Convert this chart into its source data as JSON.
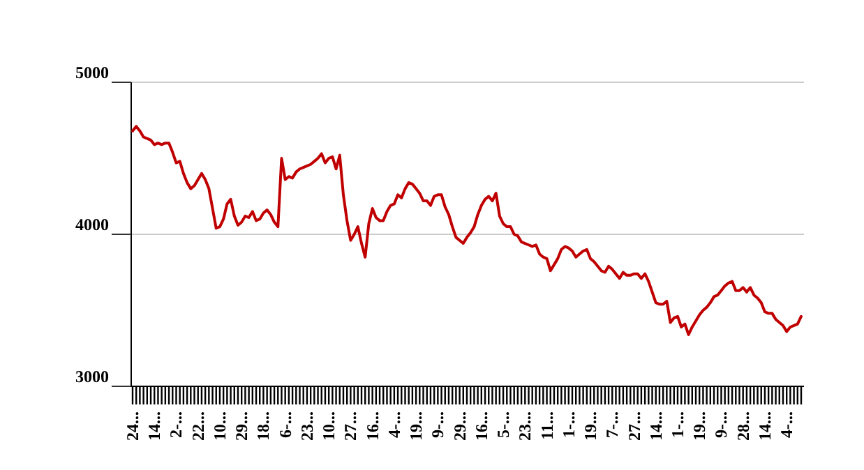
{
  "chart_data": {
    "type": "line",
    "categories": [
      "24...",
      null,
      null,
      null,
      null,
      null,
      "14...",
      null,
      null,
      null,
      null,
      null,
      "2-...",
      null,
      null,
      null,
      null,
      null,
      "22...",
      null,
      null,
      null,
      null,
      null,
      "10...",
      null,
      null,
      null,
      null,
      null,
      "29...",
      null,
      null,
      null,
      null,
      null,
      "18...",
      null,
      null,
      null,
      null,
      null,
      "6-...",
      null,
      null,
      null,
      null,
      null,
      "23...",
      null,
      null,
      null,
      null,
      null,
      "10...",
      null,
      null,
      null,
      null,
      null,
      "27...",
      null,
      null,
      null,
      null,
      null,
      "16...",
      null,
      null,
      null,
      null,
      null,
      "4-...",
      null,
      null,
      null,
      null,
      null,
      "19...",
      null,
      null,
      null,
      null,
      null,
      "9-...",
      null,
      null,
      null,
      null,
      null,
      "29...",
      null,
      null,
      null,
      null,
      null,
      "16...",
      null,
      null,
      null,
      null,
      null,
      "5-...",
      null,
      null,
      null,
      null,
      null,
      "23...",
      null,
      null,
      null,
      null,
      null,
      "11...",
      null,
      null,
      null,
      null,
      null,
      "1-...",
      null,
      null,
      null,
      null,
      null,
      "19...",
      null,
      null,
      null,
      null,
      null,
      "7-...",
      null,
      null,
      null,
      null,
      null,
      "27...",
      null,
      null,
      null,
      null,
      null,
      "14...",
      null,
      null,
      null,
      null,
      null,
      "1-...",
      null,
      null,
      null,
      null,
      null,
      "19...",
      null,
      null,
      null,
      null,
      null,
      "9-...",
      null,
      null,
      null,
      null,
      null,
      "28...",
      null,
      null,
      null,
      null,
      null,
      "14...",
      null,
      null,
      null,
      null,
      null,
      "4-...",
      null,
      null,
      null,
      null
    ],
    "series": [
      {
        "color": "#c00000",
        "values": [
          4680,
          4710,
          4680,
          4640,
          4630,
          4620,
          4590,
          4600,
          4590,
          4600,
          4600,
          4540,
          4470,
          4480,
          4400,
          4340,
          4300,
          4320,
          4360,
          4400,
          4360,
          4300,
          4170,
          4040,
          4050,
          4100,
          4200,
          4230,
          4120,
          4060,
          4080,
          4120,
          4110,
          4150,
          4090,
          4100,
          4140,
          4160,
          4130,
          4080,
          4050,
          4500,
          4360,
          4380,
          4370,
          4410,
          4430,
          4440,
          4450,
          4460,
          4480,
          4500,
          4530,
          4470,
          4500,
          4510,
          4430,
          4520,
          4260,
          4090,
          3960,
          4000,
          4050,
          3940,
          3850,
          4070,
          4170,
          4110,
          4090,
          4090,
          4150,
          4190,
          4200,
          4260,
          4240,
          4300,
          4340,
          4330,
          4300,
          4270,
          4220,
          4220,
          4190,
          4250,
          4260,
          4260,
          4180,
          4130,
          4050,
          3980,
          3960,
          3940,
          3980,
          4010,
          4050,
          4130,
          4190,
          4230,
          4250,
          4220,
          4270,
          4120,
          4070,
          4050,
          4050,
          4000,
          3990,
          3950,
          3940,
          3930,
          3920,
          3930,
          3870,
          3850,
          3840,
          3760,
          3800,
          3840,
          3900,
          3920,
          3910,
          3890,
          3850,
          3870,
          3890,
          3900,
          3840,
          3820,
          3790,
          3760,
          3750,
          3790,
          3770,
          3740,
          3710,
          3750,
          3730,
          3730,
          3740,
          3740,
          3710,
          3740,
          3690,
          3620,
          3550,
          3540,
          3540,
          3560,
          3420,
          3450,
          3460,
          3390,
          3410,
          3340,
          3390,
          3430,
          3470,
          3500,
          3520,
          3550,
          3590,
          3600,
          3630,
          3660,
          3680,
          3690,
          3630,
          3630,
          3650,
          3620,
          3650,
          3600,
          3580,
          3550,
          3490,
          3480,
          3480,
          3440,
          3420,
          3400,
          3360,
          3390,
          3400,
          3410,
          3460
        ]
      }
    ],
    "ylim": [
      3000,
      5000
    ],
    "yticks": [
      3000,
      4000,
      5000
    ],
    "grid": "y"
  }
}
